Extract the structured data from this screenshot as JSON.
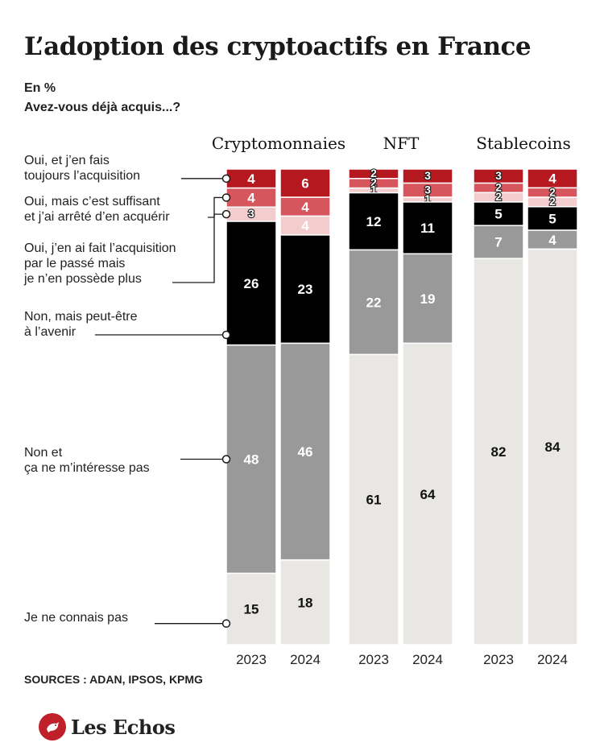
{
  "title": "L’adoption des cryptoactifs en France",
  "subtitle_unit": "En %",
  "subtitle_question": "Avez-vous déjà acquis...?",
  "chart_data": {
    "type": "bar",
    "stacked": true,
    "normalized_percent": true,
    "groups": [
      "Cryptomonnaies",
      "NFT",
      "Stablecoins"
    ],
    "years": [
      "2023",
      "2024"
    ],
    "categories": [
      "Oui, et j’en fais toujours l’acquisition",
      "Oui, mais c’est suffisant et j’ai arrêté d’en acquérir",
      "Oui, j’en ai fait l’acquisition par le passé mais je n’en possède plus",
      "Non, mais peut-être à l’avenir",
      "Non et ça ne m’intéresse pas",
      "Je ne connais pas"
    ],
    "colors": [
      "#b5191f",
      "#d7565d",
      "#f3cccd",
      "#000000",
      "#999999",
      "#e9e7e4"
    ],
    "label_colors": [
      "#ffffff",
      "#ffffff",
      "#ffffff",
      "#ffffff",
      "#ffffff",
      "#111111"
    ],
    "series": [
      {
        "group": "Cryptomonnaies",
        "year": "2023",
        "values": [
          4,
          4,
          3,
          26,
          48,
          15
        ]
      },
      {
        "group": "Cryptomonnaies",
        "year": "2024",
        "values": [
          6,
          4,
          4,
          23,
          46,
          18
        ]
      },
      {
        "group": "NFT",
        "year": "2023",
        "values": [
          2,
          2,
          1,
          12,
          22,
          61
        ]
      },
      {
        "group": "NFT",
        "year": "2024",
        "values": [
          3,
          3,
          1,
          11,
          19,
          64
        ]
      },
      {
        "group": "Stablecoins",
        "year": "2023",
        "values": [
          3,
          2,
          2,
          5,
          7,
          82
        ]
      },
      {
        "group": "Stablecoins",
        "year": "2024",
        "values": [
          4,
          2,
          2,
          5,
          4,
          84
        ]
      }
    ]
  },
  "legend_lines": [
    [
      "Oui, et j’en fais",
      "toujours l’acquisition"
    ],
    [
      "Oui, mais c’est suffisant",
      "et j’ai arrêté d’en acquérir"
    ],
    [
      "Oui, j’en ai fait l’acquisition",
      "par le passé mais",
      "je n’en possède plus"
    ],
    [
      "Non, mais peut-être",
      "à l’avenir"
    ],
    [
      "Non et",
      "ça ne m’intéresse pas"
    ],
    [
      "Je ne connais pas"
    ]
  ],
  "source": "SOURCES : ADAN, IPSOS, KPMG",
  "logo": {
    "text": "Les Echos",
    "icon": "les-echos-rooster-icon",
    "color": "#c0202a"
  }
}
